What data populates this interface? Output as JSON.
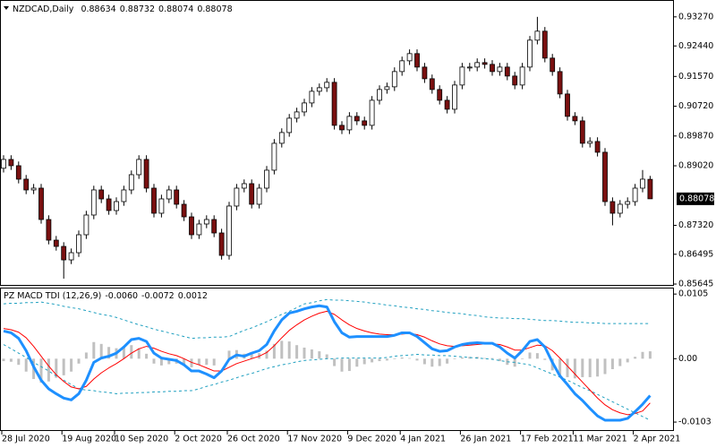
{
  "chart_data": [
    {
      "type": "candlestick",
      "title": "NZDCAD,Daily",
      "categories": [
        "28 Jul 2020",
        null,
        null,
        null,
        null,
        null,
        null,
        null,
        "19 Aug 2020",
        null,
        null,
        null,
        null,
        null,
        null,
        "10 Sep 2020",
        null,
        null,
        null,
        null,
        null,
        null,
        null,
        "2 Oct 2020",
        null,
        null,
        null,
        null,
        null,
        null,
        "26 Oct 2020",
        null,
        null,
        null,
        null,
        null,
        null,
        null,
        "17 Nov 2020",
        null,
        null,
        null,
        null,
        null,
        null,
        null,
        "9 Dec 2020",
        null,
        null,
        null,
        null,
        null,
        null,
        "4 Jan 2021",
        null,
        null,
        null,
        null,
        null,
        null,
        null,
        "26 Jan 2021",
        null,
        null,
        null,
        null,
        null,
        null,
        null,
        "17 Feb 2021",
        null,
        null,
        null,
        null,
        null,
        null,
        "11 Mar 2021",
        null,
        null,
        null,
        null,
        null,
        null,
        null,
        "2 Apr 2021",
        null,
        null
      ],
      "open": [
        0.8895,
        0.89201,
        0.89022,
        0.88638,
        0.88331,
        0.88382,
        0.87487,
        0.86898,
        0.86719,
        0.86335,
        0.8654,
        0.87052,
        0.87615,
        0.88331,
        0.88075,
        0.87743,
        0.87998,
        0.88331,
        0.88766,
        0.89201,
        0.88382,
        0.87666,
        0.88075,
        0.88331,
        0.87922,
        0.87563,
        0.87052,
        0.87359,
        0.87487,
        0.87103,
        0.86463,
        0.87871,
        0.88382,
        0.8851,
        0.87922,
        0.88382,
        0.88894,
        0.89662,
        0.89969,
        0.90378,
        0.90557,
        0.90813,
        0.91146,
        0.91248,
        0.91402,
        0.90174,
        0.90046,
        0.9043,
        0.90302,
        0.90174,
        0.9089,
        0.91197,
        0.91274,
        0.91709,
        0.92016,
        0.92221,
        0.91837,
        0.91504,
        0.91197,
        0.9089,
        0.90634,
        0.91325,
        0.91837,
        0.91837,
        0.91965,
        0.91914,
        0.91709,
        0.91837,
        0.91581,
        0.91325,
        0.91837,
        0.92605,
        0.92861,
        0.92093,
        0.91709,
        0.91069,
        0.9043,
        0.90302,
        0.89662,
        0.89713,
        0.89406,
        0.87998,
        0.87666,
        0.87922,
        0.87998,
        0.88382,
        0.88634
      ],
      "high": [
        0.89321,
        0.89321,
        0.89142,
        0.88758,
        0.88502,
        0.88502,
        0.87607,
        0.87018,
        0.86839,
        0.8666,
        0.87172,
        0.87735,
        0.88451,
        0.88451,
        0.88195,
        0.88118,
        0.88451,
        0.88886,
        0.89321,
        0.89321,
        0.88502,
        0.88195,
        0.88451,
        0.88451,
        0.88042,
        0.87683,
        0.87479,
        0.87607,
        0.87607,
        0.87223,
        0.87991,
        0.88502,
        0.8863,
        0.8863,
        0.88502,
        0.89014,
        0.89782,
        0.90089,
        0.90498,
        0.90677,
        0.90933,
        0.91266,
        0.91368,
        0.91522,
        0.91522,
        0.90294,
        0.9055,
        0.9055,
        0.90422,
        0.9101,
        0.91317,
        0.91394,
        0.91829,
        0.92136,
        0.92341,
        0.92341,
        0.91957,
        0.91624,
        0.91317,
        0.9101,
        0.91445,
        0.91957,
        0.91957,
        0.92085,
        0.92085,
        0.92034,
        0.91957,
        0.91957,
        0.91701,
        0.91957,
        0.92725,
        0.9327,
        0.92981,
        0.92213,
        0.91829,
        0.91189,
        0.9055,
        0.90422,
        0.89833,
        0.89833,
        0.89526,
        0.88118,
        0.88042,
        0.88118,
        0.88502,
        0.889,
        0.88732
      ],
      "low": [
        0.8883,
        0.88902,
        0.88518,
        0.88211,
        0.88211,
        0.87367,
        0.86778,
        0.86599,
        0.858,
        0.86215,
        0.8642,
        0.86932,
        0.87495,
        0.87955,
        0.87623,
        0.87623,
        0.87878,
        0.88211,
        0.88646,
        0.88262,
        0.87546,
        0.87546,
        0.87955,
        0.87802,
        0.87443,
        0.86932,
        0.86932,
        0.87239,
        0.86983,
        0.86343,
        0.86343,
        0.87751,
        0.88262,
        0.87802,
        0.87802,
        0.88262,
        0.88774,
        0.89542,
        0.89849,
        0.90258,
        0.90437,
        0.90693,
        0.91026,
        0.91128,
        0.90054,
        0.89926,
        0.89926,
        0.90182,
        0.90054,
        0.90054,
        0.9077,
        0.91077,
        0.91154,
        0.91589,
        0.91896,
        0.91717,
        0.91384,
        0.91077,
        0.9077,
        0.90514,
        0.90514,
        0.91205,
        0.91717,
        0.91717,
        0.91794,
        0.91589,
        0.91589,
        0.91461,
        0.91205,
        0.91205,
        0.91717,
        0.92485,
        0.91973,
        0.91589,
        0.90949,
        0.9031,
        0.90182,
        0.89542,
        0.89542,
        0.89286,
        0.87878,
        0.8732,
        0.87546,
        0.87802,
        0.87878,
        0.88262,
        0.88074
      ],
      "close": [
        0.89201,
        0.89022,
        0.88638,
        0.88331,
        0.88382,
        0.87487,
        0.86898,
        0.86719,
        0.86335,
        0.8654,
        0.87052,
        0.87615,
        0.88331,
        0.88075,
        0.87743,
        0.87998,
        0.88331,
        0.88766,
        0.89201,
        0.88382,
        0.87666,
        0.88075,
        0.88331,
        0.87922,
        0.87563,
        0.87052,
        0.87359,
        0.87487,
        0.87103,
        0.86463,
        0.87871,
        0.88382,
        0.8851,
        0.87922,
        0.88382,
        0.88894,
        0.89662,
        0.89969,
        0.90378,
        0.90557,
        0.90813,
        0.91146,
        0.91248,
        0.91402,
        0.90174,
        0.90046,
        0.9043,
        0.90302,
        0.90174,
        0.9089,
        0.91197,
        0.91274,
        0.91709,
        0.92016,
        0.92221,
        0.91837,
        0.91504,
        0.91197,
        0.9089,
        0.90634,
        0.91325,
        0.91837,
        0.91837,
        0.91965,
        0.91914,
        0.91709,
        0.91837,
        0.91581,
        0.91325,
        0.91837,
        0.92605,
        0.92861,
        0.92093,
        0.91709,
        0.91069,
        0.9043,
        0.90302,
        0.89662,
        0.89713,
        0.89406,
        0.87998,
        0.87666,
        0.87922,
        0.87998,
        0.88382,
        0.88638,
        0.88078
      ],
      "bull_color": "#ffffff",
      "bear_color": "#7a1010",
      "ylim": [
        0.8562,
        0.937
      ],
      "yticks": [
        {
          "value": 0.9327,
          "label": "0.93270"
        },
        {
          "value": 0.9244,
          "label": "0.92440"
        },
        {
          "value": 0.9157,
          "label": "0.91570"
        },
        {
          "value": 0.9072,
          "label": "0.90720"
        },
        {
          "value": 0.8987,
          "label": "0.89870"
        },
        {
          "value": 0.8902,
          "label": "0.89020"
        },
        {
          "value": 0.8732,
          "label": "0.87320"
        },
        0.86495,
        0.85645
      ]
    },
    {
      "type": "macd",
      "title": "PZ MACD TDI (12,26,9)",
      "readout": [
        {
          "value": -0.006,
          "label": "-0.0060"
        },
        {
          "value": -0.0072,
          "label": "-0.0072"
        },
        {
          "value": 0.0012,
          "label": "0.0012"
        }
      ],
      "series": [
        {
          "style": "bar",
          "color": "#c0c0c0",
          "values": [
            -0.0004,
            -0.0005,
            -0.001,
            -0.0021,
            -0.0033,
            -0.0039,
            -0.0037,
            -0.0031,
            -0.0027,
            -0.0021,
            -0.0008,
            0.001,
            0.0027,
            0.0024,
            0.0019,
            0.0017,
            0.0019,
            0.0022,
            0.0017,
            0.0008,
            -0.0008,
            -0.0011,
            -0.0009,
            -0.0008,
            -0.001,
            -0.0014,
            -0.001,
            -0.001,
            -0.0011,
            0,
            0.0013,
            0.0014,
            0.0008,
            0.0009,
            0.0009,
            0.0013,
            0.0024,
            0.0029,
            0.0028,
            0.0022,
            0.0018,
            0.0015,
            0.0012,
            0.0007,
            -0.0012,
            -0.0021,
            -0.002,
            -0.0013,
            -0.0009,
            -0.0006,
            -0.0004,
            -0.0003,
            -0.0001,
            0.0002,
            0.0001,
            -0.0003,
            -0.0009,
            -0.0013,
            -0.0012,
            -0.0008,
            -0.0001,
            0.0002,
            0.0003,
            0.0003,
            0.0001,
            0.0001,
            -0.0004,
            -0.001,
            -0.0013,
            -0.0001,
            0.001,
            0.0009,
            -0.0002,
            -0.0019,
            -0.0029,
            -0.003,
            -0.0032,
            -0.003,
            -0.003,
            -0.0029,
            -0.0025,
            -0.0017,
            -0.0012,
            -0.0006,
            0.0003,
            0.0011,
            0.0012
          ]
        },
        {
          "style": "line",
          "dash": true,
          "width": 1,
          "color": "#20a0c0",
          "values": [
            0.0089,
            0.009,
            0.009,
            0.0091,
            0.0091,
            0.0092,
            0.009,
            0.0088,
            0.0085,
            0.0083,
            0.0081,
            0.0078,
            0.0075,
            0.0072,
            0.007,
            0.0067,
            0.0063,
            0.0059,
            0.0055,
            0.0052,
            0.0048,
            0.0045,
            0.0042,
            0.0039,
            0.0036,
            0.0033,
            0.0034,
            0.0034,
            0.0035,
            0.0035,
            0.0036,
            0.0041,
            0.0046,
            0.005,
            0.0055,
            0.006,
            0.0066,
            0.0072,
            0.0077,
            0.0083,
            0.0089,
            0.0091,
            0.0094,
            0.0096,
            0.0095,
            0.0095,
            0.0094,
            0.0093,
            0.0092,
            0.009,
            0.0089,
            0.0087,
            0.0086,
            0.0084,
            0.0083,
            0.0081,
            0.008,
            0.0078,
            0.0077,
            0.0075,
            0.0074,
            0.0073,
            0.0071,
            0.007,
            0.0068,
            0.0067,
            0.0066,
            0.0066,
            0.0065,
            0.0065,
            0.0064,
            0.0063,
            0.0062,
            0.0062,
            0.0061,
            0.006,
            0.0059,
            0.0059,
            0.0058,
            0.0058,
            0.0057,
            0.0057,
            0.0057,
            0.0057,
            0.0057,
            0.0057,
            0.0057
          ]
        },
        {
          "style": "line",
          "dash": true,
          "width": 1,
          "color": "#20a0c0",
          "values": [
            0.0023,
            0.0016,
            0.0009,
            0.0002,
            -0.0006,
            -0.0013,
            -0.002,
            -0.0028,
            -0.0035,
            -0.0042,
            -0.0049,
            -0.0051,
            -0.0052,
            -0.0054,
            -0.0055,
            -0.0057,
            -0.0056,
            -0.0056,
            -0.0055,
            -0.0055,
            -0.0054,
            -0.0054,
            -0.0053,
            -0.0053,
            -0.0052,
            -0.0052,
            -0.0049,
            -0.0045,
            -0.0042,
            -0.0038,
            -0.0035,
            -0.0031,
            -0.0027,
            -0.0024,
            -0.002,
            -0.0016,
            -0.0013,
            -0.001,
            -0.0008,
            -0.0005,
            -0.0003,
            -0.0002,
            -0.0001,
            0,
            0,
            0.0001,
            0.0001,
            0.0001,
            0.0001,
            0.0001,
            0.0001,
            0.0002,
            0.0004,
            0.0005,
            0.0006,
            0.0007,
            0.0006,
            0.0006,
            0.0005,
            0.0005,
            0.0004,
            0.0003,
            0.0002,
            0.0001,
            0,
            -0.0001,
            -0.0003,
            -0.0005,
            -0.0006,
            -0.0008,
            -0.001,
            -0.0015,
            -0.002,
            -0.0025,
            -0.003,
            -0.0035,
            -0.0041,
            -0.0047,
            -0.0052,
            -0.0058,
            -0.0064,
            -0.007,
            -0.0076,
            -0.0082,
            -0.0088,
            -0.0094,
            -0.01
          ]
        },
        {
          "style": "line",
          "width": 1,
          "color": "#ff0000",
          "values": [
            0.0049,
            0.0047,
            0.0043,
            0.0034,
            0.002,
            0.0004,
            -0.0012,
            -0.0026,
            -0.0037,
            -0.0046,
            -0.0049,
            -0.0045,
            -0.0033,
            -0.0023,
            -0.0015,
            -0.0008,
            0,
            0.0009,
            0.0016,
            0.002,
            0.0017,
            0.0012,
            0.0008,
            0.0005,
            0,
            -0.0006,
            -0.001,
            -0.0015,
            -0.002,
            -0.002,
            -0.0014,
            -0.0008,
            -0.0004,
            0,
            0.0004,
            0.001,
            0.0021,
            0.0034,
            0.0046,
            0.0055,
            0.0063,
            0.0069,
            0.0074,
            0.0077,
            0.0072,
            0.0063,
            0.0055,
            0.0049,
            0.0045,
            0.0042,
            0.004,
            0.0039,
            0.0039,
            0.004,
            0.0041,
            0.0039,
            0.0035,
            0.0029,
            0.0024,
            0.0021,
            0.002,
            0.0021,
            0.0022,
            0.0023,
            0.0024,
            0.0024,
            0.0023,
            0.0019,
            0.0014,
            0.0014,
            0.0018,
            0.0022,
            0.0021,
            0.0013,
            0.0001,
            -0.0012,
            -0.0025,
            -0.0038,
            -0.0051,
            -0.0064,
            -0.0075,
            -0.0083,
            -0.0088,
            -0.0091,
            -0.0089,
            -0.0085,
            -0.0072
          ]
        },
        {
          "style": "line",
          "width": 3,
          "color": "#1e90ff",
          "values": [
            0.0045,
            0.0042,
            0.0033,
            0.0013,
            -0.0013,
            -0.0035,
            -0.0049,
            -0.0057,
            -0.0064,
            -0.0067,
            -0.0057,
            -0.0035,
            -0.0006,
            0.0001,
            0.0004,
            0.0009,
            0.0019,
            0.0031,
            0.0033,
            0.0028,
            0.0009,
            0.0001,
            -0.0001,
            -0.0003,
            -0.001,
            -0.002,
            -0.002,
            -0.0025,
            -0.0031,
            -0.002,
            -0.0001,
            0.0006,
            0.0004,
            0.0009,
            0.0013,
            0.0023,
            0.0045,
            0.0063,
            0.0074,
            0.0077,
            0.0081,
            0.0084,
            0.0086,
            0.0084,
            0.006,
            0.0042,
            0.0035,
            0.0036,
            0.0036,
            0.0036,
            0.0036,
            0.0036,
            0.0038,
            0.0042,
            0.0042,
            0.0036,
            0.0026,
            0.0016,
            0.0012,
            0.0013,
            0.0019,
            0.0023,
            0.0025,
            0.0026,
            0.0025,
            0.0025,
            0.0019,
            0.0009,
            0.0001,
            0.0013,
            0.0028,
            0.0031,
            0.0019,
            -0.0006,
            -0.0028,
            -0.0042,
            -0.0057,
            -0.0068,
            -0.0081,
            -0.0093,
            -0.01,
            -0.01,
            -0.01,
            -0.0097,
            -0.0086,
            -0.0074,
            -0.006
          ]
        }
      ],
      "ylim": [
        -0.0116,
        0.0114
      ],
      "yticks": [
        0.0105,
        {
          "value": 0,
          "label": "0.00"
        },
        -0.0103
      ]
    }
  ]
}
